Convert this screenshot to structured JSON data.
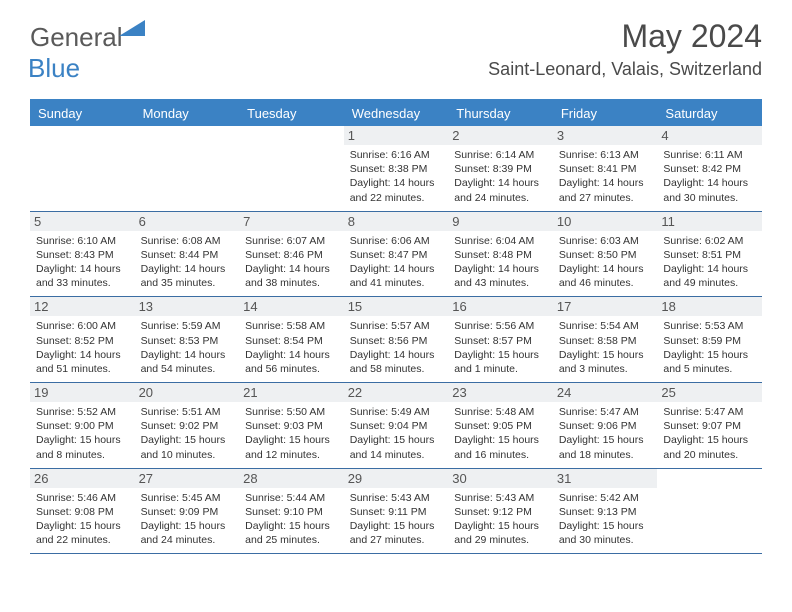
{
  "logo": {
    "text1": "General",
    "text2": "Blue"
  },
  "title": "May 2024",
  "location": "Saint-Leonard, Valais, Switzerland",
  "colors": {
    "header_bg": "#3b82c4",
    "header_text": "#ffffff",
    "border": "#3b6da3",
    "daynum_bg": "#eef0f2",
    "body_text": "#333333",
    "title_text": "#4a4a4a"
  },
  "day_headers": [
    "Sunday",
    "Monday",
    "Tuesday",
    "Wednesday",
    "Thursday",
    "Friday",
    "Saturday"
  ],
  "weeks": [
    [
      null,
      null,
      null,
      {
        "n": "1",
        "sr": "6:16 AM",
        "ss": "8:38 PM",
        "d1": "14 hours",
        "d2": "and 22 minutes."
      },
      {
        "n": "2",
        "sr": "6:14 AM",
        "ss": "8:39 PM",
        "d1": "14 hours",
        "d2": "and 24 minutes."
      },
      {
        "n": "3",
        "sr": "6:13 AM",
        "ss": "8:41 PM",
        "d1": "14 hours",
        "d2": "and 27 minutes."
      },
      {
        "n": "4",
        "sr": "6:11 AM",
        "ss": "8:42 PM",
        "d1": "14 hours",
        "d2": "and 30 minutes."
      }
    ],
    [
      {
        "n": "5",
        "sr": "6:10 AM",
        "ss": "8:43 PM",
        "d1": "14 hours",
        "d2": "and 33 minutes."
      },
      {
        "n": "6",
        "sr": "6:08 AM",
        "ss": "8:44 PM",
        "d1": "14 hours",
        "d2": "and 35 minutes."
      },
      {
        "n": "7",
        "sr": "6:07 AM",
        "ss": "8:46 PM",
        "d1": "14 hours",
        "d2": "and 38 minutes."
      },
      {
        "n": "8",
        "sr": "6:06 AM",
        "ss": "8:47 PM",
        "d1": "14 hours",
        "d2": "and 41 minutes."
      },
      {
        "n": "9",
        "sr": "6:04 AM",
        "ss": "8:48 PM",
        "d1": "14 hours",
        "d2": "and 43 minutes."
      },
      {
        "n": "10",
        "sr": "6:03 AM",
        "ss": "8:50 PM",
        "d1": "14 hours",
        "d2": "and 46 minutes."
      },
      {
        "n": "11",
        "sr": "6:02 AM",
        "ss": "8:51 PM",
        "d1": "14 hours",
        "d2": "and 49 minutes."
      }
    ],
    [
      {
        "n": "12",
        "sr": "6:00 AM",
        "ss": "8:52 PM",
        "d1": "14 hours",
        "d2": "and 51 minutes."
      },
      {
        "n": "13",
        "sr": "5:59 AM",
        "ss": "8:53 PM",
        "d1": "14 hours",
        "d2": "and 54 minutes."
      },
      {
        "n": "14",
        "sr": "5:58 AM",
        "ss": "8:54 PM",
        "d1": "14 hours",
        "d2": "and 56 minutes."
      },
      {
        "n": "15",
        "sr": "5:57 AM",
        "ss": "8:56 PM",
        "d1": "14 hours",
        "d2": "and 58 minutes."
      },
      {
        "n": "16",
        "sr": "5:56 AM",
        "ss": "8:57 PM",
        "d1": "15 hours",
        "d2": "and 1 minute."
      },
      {
        "n": "17",
        "sr": "5:54 AM",
        "ss": "8:58 PM",
        "d1": "15 hours",
        "d2": "and 3 minutes."
      },
      {
        "n": "18",
        "sr": "5:53 AM",
        "ss": "8:59 PM",
        "d1": "15 hours",
        "d2": "and 5 minutes."
      }
    ],
    [
      {
        "n": "19",
        "sr": "5:52 AM",
        "ss": "9:00 PM",
        "d1": "15 hours",
        "d2": "and 8 minutes."
      },
      {
        "n": "20",
        "sr": "5:51 AM",
        "ss": "9:02 PM",
        "d1": "15 hours",
        "d2": "and 10 minutes."
      },
      {
        "n": "21",
        "sr": "5:50 AM",
        "ss": "9:03 PM",
        "d1": "15 hours",
        "d2": "and 12 minutes."
      },
      {
        "n": "22",
        "sr": "5:49 AM",
        "ss": "9:04 PM",
        "d1": "15 hours",
        "d2": "and 14 minutes."
      },
      {
        "n": "23",
        "sr": "5:48 AM",
        "ss": "9:05 PM",
        "d1": "15 hours",
        "d2": "and 16 minutes."
      },
      {
        "n": "24",
        "sr": "5:47 AM",
        "ss": "9:06 PM",
        "d1": "15 hours",
        "d2": "and 18 minutes."
      },
      {
        "n": "25",
        "sr": "5:47 AM",
        "ss": "9:07 PM",
        "d1": "15 hours",
        "d2": "and 20 minutes."
      }
    ],
    [
      {
        "n": "26",
        "sr": "5:46 AM",
        "ss": "9:08 PM",
        "d1": "15 hours",
        "d2": "and 22 minutes."
      },
      {
        "n": "27",
        "sr": "5:45 AM",
        "ss": "9:09 PM",
        "d1": "15 hours",
        "d2": "and 24 minutes."
      },
      {
        "n": "28",
        "sr": "5:44 AM",
        "ss": "9:10 PM",
        "d1": "15 hours",
        "d2": "and 25 minutes."
      },
      {
        "n": "29",
        "sr": "5:43 AM",
        "ss": "9:11 PM",
        "d1": "15 hours",
        "d2": "and 27 minutes."
      },
      {
        "n": "30",
        "sr": "5:43 AM",
        "ss": "9:12 PM",
        "d1": "15 hours",
        "d2": "and 29 minutes."
      },
      {
        "n": "31",
        "sr": "5:42 AM",
        "ss": "9:13 PM",
        "d1": "15 hours",
        "d2": "and 30 minutes."
      },
      null
    ]
  ],
  "labels": {
    "sunrise": "Sunrise:",
    "sunset": "Sunset:",
    "daylight": "Daylight:"
  }
}
